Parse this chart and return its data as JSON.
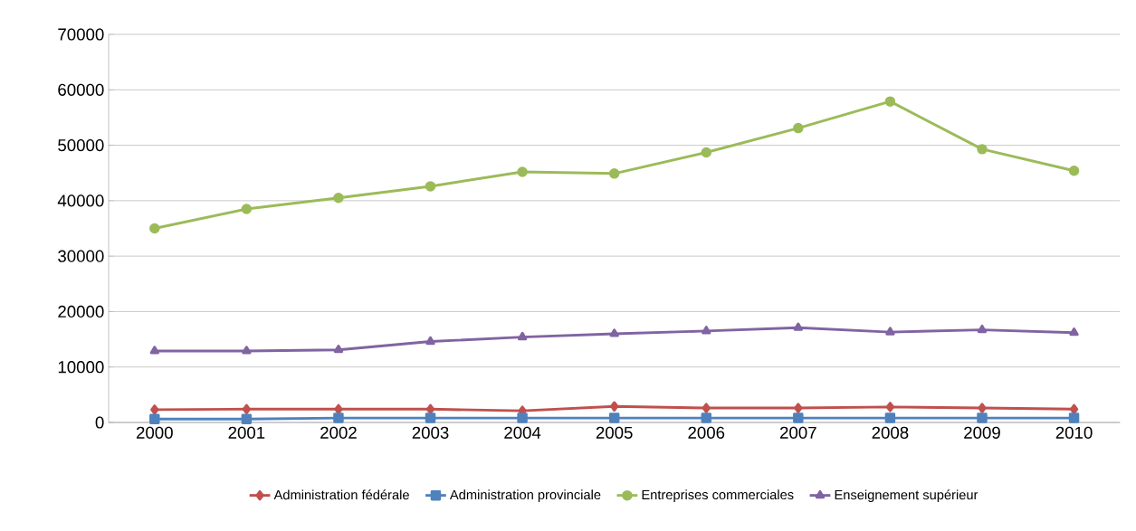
{
  "chart_data": {
    "type": "line",
    "categories": [
      "2000",
      "2001",
      "2002",
      "2003",
      "2004",
      "2005",
      "2006",
      "2007",
      "2008",
      "2009",
      "2010"
    ],
    "series": [
      {
        "name": "Administration fédérale",
        "color": "#c0504d",
        "marker": "diamond",
        "values": [
          2300,
          2400,
          2400,
          2400,
          2100,
          2900,
          2600,
          2600,
          2800,
          2600,
          2400
        ]
      },
      {
        "name": "Administration provinciale",
        "color": "#4f81bd",
        "marker": "square",
        "values": [
          600,
          600,
          800,
          800,
          800,
          800,
          800,
          800,
          800,
          800,
          800
        ]
      },
      {
        "name": "Entreprises commerciales",
        "color": "#9bbb59",
        "marker": "circle",
        "values": [
          35000,
          38500,
          40500,
          42600,
          45200,
          44900,
          48700,
          53100,
          57900,
          49300,
          45400
        ]
      },
      {
        "name": "Enseignement supérieur",
        "color": "#8064a2",
        "marker": "triangle",
        "values": [
          12900,
          12900,
          13100,
          14600,
          15400,
          16000,
          16500,
          17100,
          16300,
          16700,
          16200
        ]
      }
    ],
    "ylim": [
      0,
      70000
    ],
    "yticks": [
      0,
      10000,
      20000,
      30000,
      40000,
      50000,
      60000,
      70000
    ],
    "grid": "y",
    "legend": "bottom",
    "line_style": "solid"
  }
}
